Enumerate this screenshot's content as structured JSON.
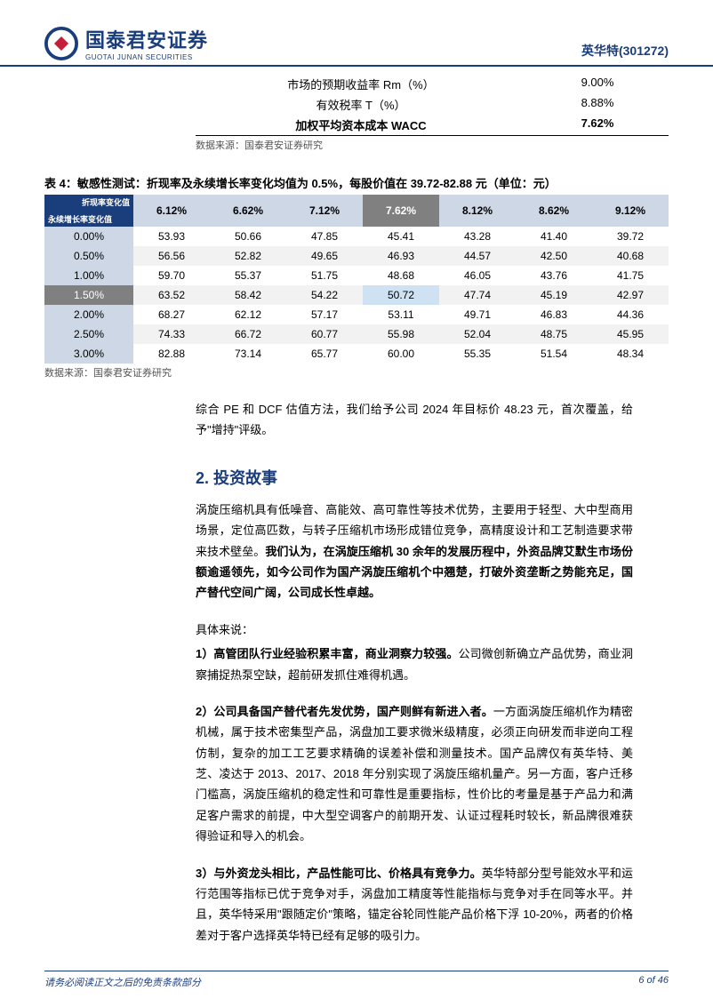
{
  "header": {
    "company_name_cn": "国泰君安证券",
    "company_name_en": "GUOTAI JUNAN SECURITIES",
    "stock_name": "英华特",
    "stock_code": "(301272)",
    "logo_fill": "#1a3d7c",
    "logo_core_fill": "#c41e3a"
  },
  "top_metrics": {
    "rows": [
      {
        "label": "市场的预期收益率 Rm（%）",
        "value": "9.00%",
        "bold": false
      },
      {
        "label": "有效税率 T（%）",
        "value": "8.88%",
        "bold": false
      },
      {
        "label": "加权平均资本成本 WACC",
        "value": "7.62%",
        "bold": true
      }
    ],
    "source": "数据来源：国泰君安证券研究"
  },
  "sensitivity": {
    "caption": "表 4：敏感性测试：折现率及永续增长率变化均值为 0.5%，每股价值在 39.72-82.88 元（单位：元）",
    "corner_top": "折现率变化值",
    "corner_bottom": "永续增长率变化值",
    "col_headers": [
      "6.12%",
      "6.62%",
      "7.12%",
      "7.62%",
      "8.12%",
      "8.62%",
      "9.12%"
    ],
    "highlight_col_index": 3,
    "highlight_row_index": 3,
    "rows": [
      {
        "hdr": "0.00%",
        "vals": [
          "53.93",
          "50.66",
          "47.85",
          "45.41",
          "43.28",
          "41.40",
          "39.72"
        ]
      },
      {
        "hdr": "0.50%",
        "vals": [
          "56.56",
          "52.82",
          "49.65",
          "46.93",
          "44.57",
          "42.50",
          "40.68"
        ]
      },
      {
        "hdr": "1.00%",
        "vals": [
          "59.70",
          "55.37",
          "51.75",
          "48.68",
          "46.05",
          "43.76",
          "41.75"
        ]
      },
      {
        "hdr": "1.50%",
        "vals": [
          "63.52",
          "58.42",
          "54.22",
          "50.72",
          "47.74",
          "45.19",
          "42.97"
        ]
      },
      {
        "hdr": "2.00%",
        "vals": [
          "68.27",
          "62.12",
          "57.17",
          "53.11",
          "49.71",
          "46.83",
          "44.36"
        ]
      },
      {
        "hdr": "2.50%",
        "vals": [
          "74.33",
          "66.72",
          "60.77",
          "55.98",
          "52.04",
          "48.75",
          "45.95"
        ]
      },
      {
        "hdr": "3.00%",
        "vals": [
          "82.88",
          "73.14",
          "65.77",
          "60.00",
          "55.35",
          "51.54",
          "48.34"
        ]
      }
    ],
    "source": "数据来源：国泰君安证券研究",
    "stripe_bg": "#f2f2f2",
    "header_bg": "#cdd7e5",
    "highlight_bg": "#808080",
    "cell_highlight_bg": "#cfe2f3"
  },
  "summary": "综合 PE 和 DCF 估值方法，我们给予公司 2024 年目标价 48.23 元，首次覆盖，给予\"增持\"评级。",
  "section2": {
    "title": "2. 投资故事",
    "intro": "涡旋压缩机具有低噪音、高能效、高可靠性等技术优势，主要用于轻型、大中型商用场景，定位高匹数，与转子压缩机市场形成错位竞争，高精度设计和工艺制造要求带来技术壁垒。",
    "intro_bold": "我们认为，在涡旋压缩机 30 余年的发展历程中，外资品牌艾默生市场份额逾遥领先，如今公司作为国产涡旋压缩机个中翘楚，打破外资垄断之势能充足，国产替代空间广阔，公司成长性卓越。",
    "detail_label": "具体来说：",
    "p1_lead": "1）高管团队行业经验积累丰富，商业洞察力较强。",
    "p1_body": "公司微创新确立产品优势，商业洞察捕捉热泵空缺，超前研发抓住难得机遇。",
    "p2_lead": "2）公司具备国产替代者先发优势，国产则鲜有新进入者。",
    "p2_body": "一方面涡旋压缩机作为精密机械，属于技术密集型产品，涡盘加工要求微米级精度，必须正向研发而非逆向工程仿制，复杂的加工工艺要求精确的误差补偿和测量技术。国产品牌仅有英华特、美芝、凌达于 2013、2017、2018 年分别实现了涡旋压缩机量产。另一方面，客户迁移门槛高，涡旋压缩机的稳定性和可靠性是重要指标，性价比的考量是基于产品力和满足客户需求的前提，中大型空调客户的前期开发、认证过程耗时较长，新品牌很难获得验证和导入的机会。",
    "p3_lead": "3）与外资龙头相比，产品性能可比、价格具有竞争力。",
    "p3_body": "英华特部分型号能效水平和运行范围等指标已优于竞争对手，涡盘加工精度等性能指标与竞争对手在同等水平。并且，英华特采用\"跟随定价\"策略，锚定谷轮同性能产品价格下浮 10-20%，两者的价格差对于客户选择英华特已经有足够的吸引力。"
  },
  "footer": {
    "text": "请务必阅读正文之后的免责条款部分",
    "page": "6 of 46"
  }
}
